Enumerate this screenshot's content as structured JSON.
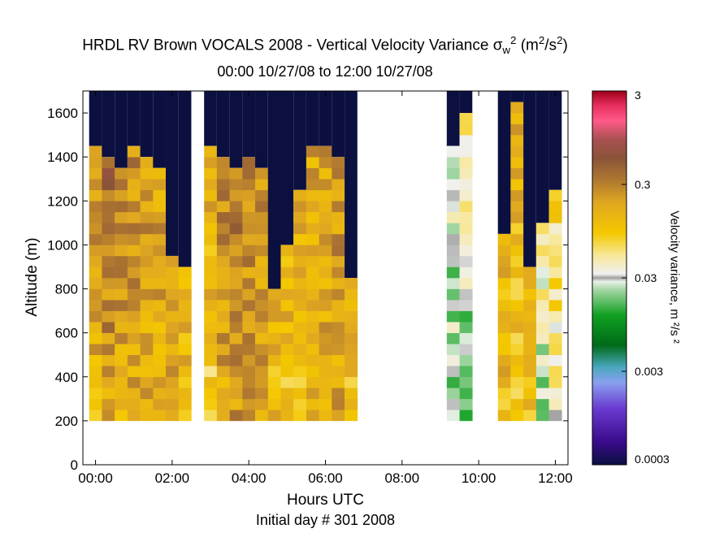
{
  "titles": {
    "line1_prefix": "HRDL RV Brown VOCALS 2008 - Vertical Velocity Variance ",
    "sigma": "σ",
    "sigma_sub": "w",
    "sigma_sup": "2",
    "units_open": " (m",
    "units_sup1": "2",
    "units_mid": "/s",
    "units_sup2": "2",
    "units_close": ")",
    "line2": "00:00 10/27/08 to 12:00 10/27/08"
  },
  "colors": {
    "background_fill": "#0b1040",
    "axis": "#000000"
  },
  "chart_data": {
    "type": "heatmap",
    "title": "HRDL RV Brown VOCALS 2008 - Vertical Velocity Variance σw² (m²/s²)",
    "subtitle": "00:00 10/27/08 to 12:00 10/27/08",
    "xlabel": "Hours UTC",
    "xlabel_sub": "Initial day # 301  2008",
    "ylabel": "Altitude (m)",
    "colorbar_label": "Velocity variance, m ²/s ²",
    "xlim": [
      -0.33,
      12.33
    ],
    "ylim": [
      0,
      1700
    ],
    "x_ticks": [
      0,
      2,
      4,
      6,
      8,
      10,
      12
    ],
    "x_tick_labels": [
      "00:00",
      "02:00",
      "04:00",
      "06:00",
      "08:00",
      "10:00",
      "12:00"
    ],
    "y_ticks": [
      0,
      200,
      400,
      600,
      800,
      1000,
      1200,
      1400,
      1600
    ],
    "y_tick_labels": [
      "0",
      "200",
      "400",
      "600",
      "800",
      "1000",
      "1200",
      "1400",
      "1600"
    ],
    "colorbar": {
      "scale": "log",
      "range": [
        0.0003,
        3
      ],
      "ticks": [
        0.0003,
        0.003,
        0.03,
        0.3,
        3
      ],
      "tick_labels": [
        "0.0003",
        "0.003",
        "0.03",
        "0.3",
        "3"
      ]
    },
    "time_step_hours": 0.333,
    "altitude_bin_m": 50,
    "columns": [
      {
        "t": 0.0,
        "top": 1450,
        "l1": 0.14,
        "l2": 0.22
      },
      {
        "t": 0.333,
        "top": 1400,
        "l1": 0.16,
        "l2": 0.45
      },
      {
        "t": 0.667,
        "top": 1350,
        "l1": 0.15,
        "l2": 0.28
      },
      {
        "t": 1.0,
        "top": 1450,
        "l1": 0.17,
        "l2": 0.26
      },
      {
        "t": 1.333,
        "top": 1400,
        "l1": 0.16,
        "l2": 0.22
      },
      {
        "t": 1.667,
        "top": 1350,
        "l1": 0.14,
        "l2": 0.2
      },
      {
        "t": 2.0,
        "top": 950,
        "l1": 0.15,
        "l2": 0.2
      },
      {
        "t": 2.333,
        "top": 900,
        "l1": 0.12,
        "l2": 0.16
      },
      {
        "t": 3.0,
        "top": 1450,
        "l1": 0.08,
        "l2": 0.18
      },
      {
        "t": 3.333,
        "top": 1400,
        "l1": 0.16,
        "l2": 0.3
      },
      {
        "t": 3.667,
        "top": 1350,
        "l1": 0.22,
        "l2": 0.35
      },
      {
        "t": 4.0,
        "top": 1400,
        "l1": 0.2,
        "l2": 0.28
      },
      {
        "t": 4.333,
        "top": 1350,
        "l1": 0.18,
        "l2": 0.25
      },
      {
        "t": 4.667,
        "top": 800,
        "l1": 0.12,
        "l2": 0.16
      },
      {
        "t": 5.0,
        "top": 1000,
        "l1": 0.1,
        "l2": 0.15
      },
      {
        "t": 5.333,
        "top": 1250,
        "l1": 0.09,
        "l2": 0.14
      },
      {
        "t": 5.667,
        "top": 1450,
        "l1": 0.13,
        "l2": 0.18
      },
      {
        "t": 6.0,
        "top": 1450,
        "l1": 0.14,
        "l2": 0.2
      },
      {
        "t": 6.333,
        "top": 1400,
        "l1": 0.17,
        "l2": 0.25
      },
      {
        "t": 6.667,
        "top": 850,
        "l1": 0.12,
        "l2": 0.12
      },
      {
        "t": 9.333,
        "top": 1450,
        "l1": 0.02,
        "l2": 0.03
      },
      {
        "t": 9.667,
        "top": 1600,
        "l1": 0.012,
        "l2": 0.05
      },
      {
        "t": 10.667,
        "top": 1050,
        "l1": 0.12,
        "l2": 0.16
      },
      {
        "t": 11.0,
        "top": 1650,
        "l1": 0.1,
        "l2": 0.14
      },
      {
        "t": 11.333,
        "top": 900,
        "l1": 0.11,
        "l2": 0.15
      },
      {
        "t": 11.667,
        "top": 1100,
        "l1": 0.02,
        "l2": 0.05
      },
      {
        "t": 12.0,
        "top": 1250,
        "l1": 0.03,
        "l2": 0.08
      }
    ]
  }
}
